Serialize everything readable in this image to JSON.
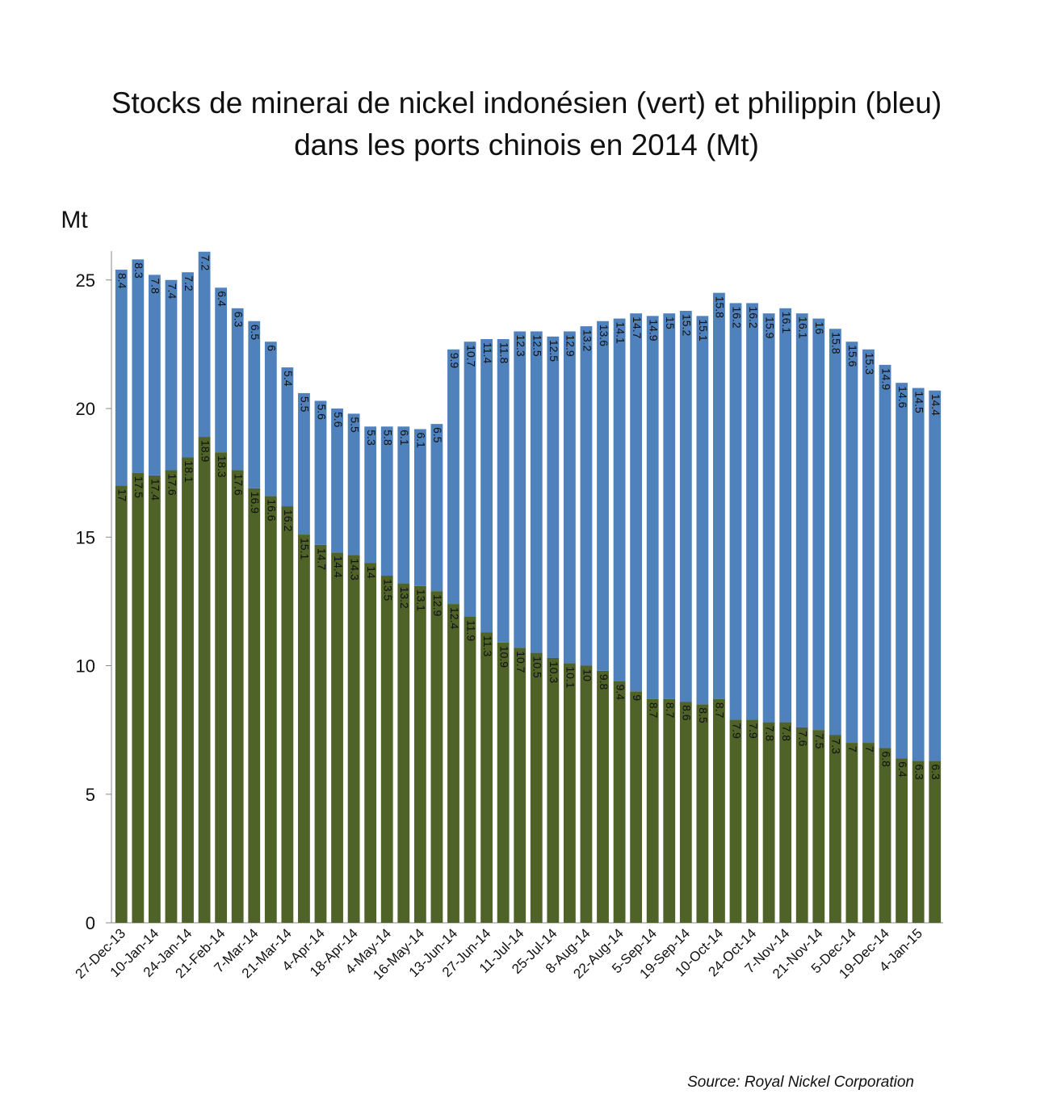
{
  "chart_data": {
    "type": "stacked_bar",
    "title": [
      "Stocks de minerai de nickel indonésien (vert) et philippin (bleu)",
      "dans les ports chinois en 2014 (Mt)"
    ],
    "y_label": "Mt",
    "source": "Source: Royal Nickel Corporation",
    "categories": [
      "27-Dec-13",
      null,
      "10-Jan-14",
      null,
      "24-Jan-14",
      null,
      "21-Feb-14",
      null,
      "7-Mar-14",
      null,
      "21-Mar-14",
      null,
      "4-Apr-14",
      null,
      "18-Apr-14",
      null,
      "4-May-14",
      null,
      "16-May-14",
      null,
      "13-Jun-14",
      null,
      "27-Jun-14",
      null,
      "11-Jul-14",
      null,
      "25-Jul-14",
      null,
      "8-Aug-14",
      null,
      "22-Aug-14",
      null,
      "5-Sep-14",
      null,
      "19-Sep-14",
      null,
      "10-Oct-14",
      null,
      "24-Oct-14",
      null,
      "7-Nov-14",
      null,
      "21-Nov-14",
      null,
      "5-Dec-14",
      null,
      "19-Dec-14",
      null,
      "4-Jan-15",
      null
    ],
    "series": [
      {
        "color": "#4f6228",
        "values": [
          17.0,
          17.5,
          17.4,
          17.6,
          18.1,
          18.9,
          18.3,
          17.6,
          16.9,
          16.6,
          16.2,
          15.1,
          14.7,
          14.4,
          14.3,
          14.0,
          13.5,
          13.2,
          13.1,
          12.9,
          12.4,
          11.9,
          11.3,
          10.9,
          10.7,
          10.5,
          10.3,
          10.1,
          10.0,
          9.8,
          9.4,
          9.0,
          8.7,
          8.7,
          8.6,
          8.5,
          8.7,
          7.9,
          7.9,
          7.8,
          7.8,
          7.6,
          7.5,
          7.3,
          7.0,
          7.0,
          6.8,
          6.4,
          6.3,
          6.3
        ]
      },
      {
        "color": "#4f81bd",
        "values": [
          8.4,
          8.3,
          7.8,
          7.4,
          7.2,
          7.2,
          6.4,
          6.3,
          6.5,
          6.0,
          5.4,
          5.5,
          5.6,
          5.6,
          5.5,
          5.3,
          5.8,
          6.1,
          6.1,
          6.5,
          9.9,
          10.7,
          11.4,
          11.8,
          12.3,
          12.5,
          12.5,
          12.9,
          13.2,
          13.6,
          14.1,
          14.7,
          14.9,
          15.0,
          15.2,
          15.1,
          15.8,
          16.2,
          16.2,
          15.9,
          16.1,
          16.1,
          16.0,
          15.8,
          15.6,
          15.3,
          14.9,
          14.6,
          14.5,
          14.4
        ]
      }
    ],
    "ylim": [
      0,
      26.5
    ],
    "yticks": [
      0,
      5,
      10,
      15,
      20,
      25
    ]
  }
}
